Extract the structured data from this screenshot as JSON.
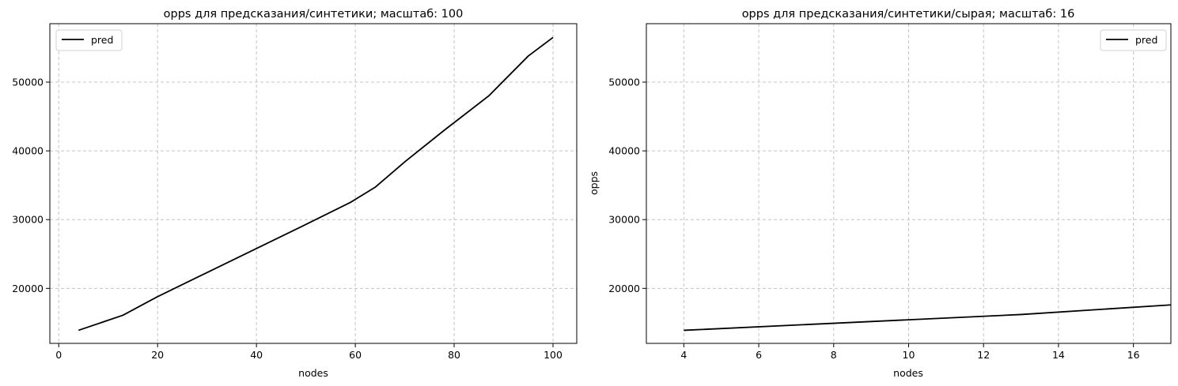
{
  "chart_data": [
    {
      "type": "line",
      "title": "opps для предсказания/синтетики; масштаб: 100",
      "xlabel": "nodes",
      "ylabel": "",
      "xlim": [
        -1.8,
        104.8
      ],
      "ylim": [
        12000,
        58500
      ],
      "xticks": [
        0,
        20,
        40,
        60,
        80,
        100
      ],
      "yticks": [
        20000,
        30000,
        40000,
        50000
      ],
      "grid": true,
      "legend": "top-left",
      "series": [
        {
          "name": "pred",
          "color": "#000000",
          "x": [
            4,
            13,
            20,
            30,
            40,
            50,
            59,
            64,
            70,
            78,
            87,
            95,
            100
          ],
          "y": [
            13900,
            16100,
            18800,
            22300,
            25800,
            29300,
            32500,
            34700,
            38400,
            43000,
            48000,
            53800,
            56500
          ]
        }
      ]
    },
    {
      "type": "line",
      "title": "opps для предсказания/синтетики/сырая; масштаб: 16",
      "xlabel": "nodes",
      "ylabel": "opps",
      "xlim": [
        3,
        17
      ],
      "ylim": [
        12000,
        58500
      ],
      "xticks": [
        4,
        6,
        8,
        10,
        12,
        14,
        16
      ],
      "yticks": [
        20000,
        30000,
        40000,
        50000
      ],
      "grid": true,
      "legend": "top-right",
      "series": [
        {
          "name": "pred",
          "color": "#000000",
          "x": [
            4,
            13,
            17
          ],
          "y": [
            13900,
            16200,
            17600
          ]
        }
      ]
    }
  ]
}
